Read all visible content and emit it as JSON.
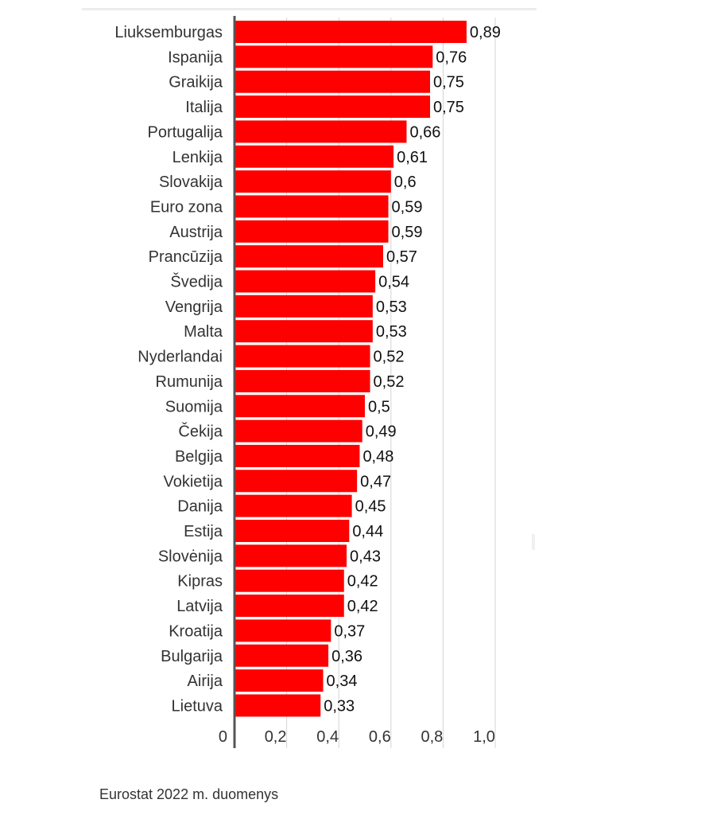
{
  "chart_data": {
    "type": "bar",
    "orientation": "horizontal",
    "categories": [
      "Liuksemburgas",
      "Ispanija",
      "Graikija",
      "Italija",
      "Portugalija",
      "Lenkija",
      "Slovakija",
      "Euro zona",
      "Austrija",
      "Prancūzija",
      "Švedija",
      "Vengrija",
      "Malta",
      "Nyderlandai",
      "Rumunija",
      "Suomija",
      "Čekija",
      "Belgija",
      "Vokietija",
      "Danija",
      "Estija",
      "Slovėnija",
      "Kipras",
      "Latvija",
      "Kroatija",
      "Bulgarija",
      "Airija",
      "Lietuva"
    ],
    "values": [
      0.89,
      0.76,
      0.75,
      0.75,
      0.66,
      0.61,
      0.6,
      0.59,
      0.59,
      0.57,
      0.54,
      0.53,
      0.53,
      0.52,
      0.52,
      0.5,
      0.49,
      0.48,
      0.47,
      0.45,
      0.44,
      0.43,
      0.42,
      0.42,
      0.37,
      0.36,
      0.34,
      0.33
    ],
    "value_labels": [
      "0,89",
      "0,76",
      "0,75",
      "0,75",
      "0,66",
      "0,61",
      "0,6",
      "0,59",
      "0,59",
      "0,57",
      "0,54",
      "0,53",
      "0,53",
      "0,52",
      "0,52",
      "0,5",
      "0,49",
      "0,48",
      "0,47",
      "0,45",
      "0,44",
      "0,43",
      "0,42",
      "0,42",
      "0,37",
      "0,36",
      "0,34",
      "0,33"
    ],
    "xlim": [
      0,
      1.0
    ],
    "ticks": [
      0,
      0.2,
      0.4,
      0.6,
      0.8,
      1.0
    ],
    "tick_labels": [
      "0",
      "0,2",
      "0,4",
      "0,6",
      "0,8",
      "1,0"
    ],
    "grid": true,
    "bar_color": "#ff0000",
    "title": "",
    "xlabel": "",
    "ylabel": ""
  },
  "source": "Eurostat 2022 m. duomenys"
}
